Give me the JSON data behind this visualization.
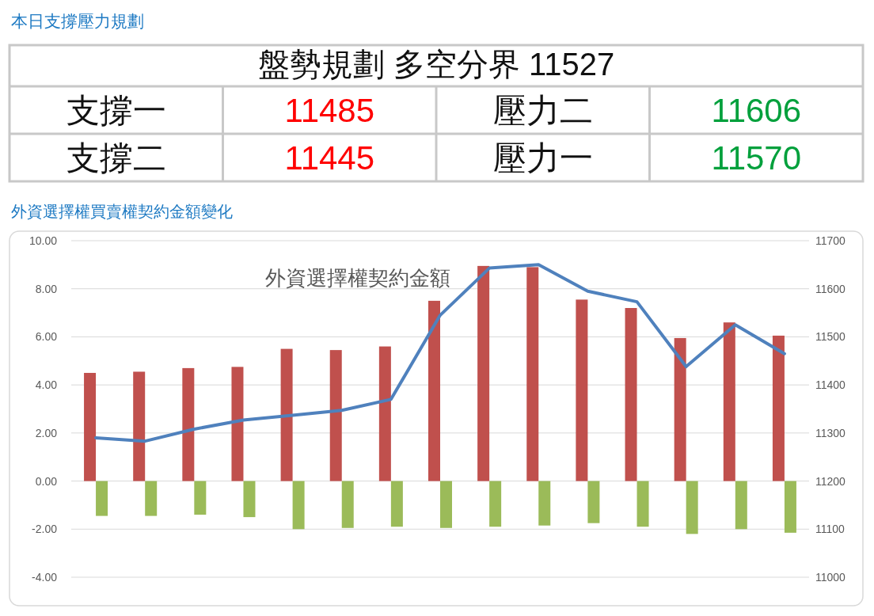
{
  "chart_data": [
    {
      "type": "other",
      "title": "本日支撐壓力規劃",
      "annotations": [
        "盤勢規劃 多空分界 11527",
        "支撐一",
        "11485",
        "壓力二",
        "11606",
        "支撐二",
        "11445",
        "壓力一",
        "11570"
      ]
    },
    {
      "type": "bar",
      "title": "外資選擇權契約金額",
      "annotations": [
        "外資選擇權買賣權契約金額變化"
      ],
      "categories": [
        null,
        null,
        null,
        null,
        null,
        null,
        null,
        null,
        null,
        null,
        null,
        null,
        null,
        null,
        null
      ],
      "series": [
        {
          "color": "#c0504d",
          "values": [
            4.5,
            4.55,
            4.7,
            4.75,
            5.5,
            5.45,
            5.6,
            7.5,
            8.95,
            8.9,
            7.55,
            7.2,
            5.95,
            6.6,
            6.05
          ]
        },
        {
          "color": "#9bbb59",
          "values": [
            -1.45,
            -1.45,
            -1.4,
            -1.5,
            -2.0,
            -1.95,
            -1.9,
            -1.95,
            -1.9,
            -1.85,
            -1.75,
            -1.9,
            -2.2,
            -2.0,
            -2.15
          ]
        },
        {
          "type": "line",
          "axis": "y2",
          "color": "#4f81bd",
          "values": [
            11290,
            11283,
            11308,
            11327,
            11337,
            11347,
            11370,
            11545,
            11643,
            11650,
            11595,
            11573,
            11438,
            11525,
            11465
          ]
        }
      ],
      "ylim": [
        -4,
        10
      ],
      "yticks": [
        {
          "value": -4,
          "label": "-4.00"
        },
        {
          "value": -2,
          "label": "-2.00"
        },
        {
          "value": 0,
          "label": "0.00"
        },
        {
          "value": 2,
          "label": "2.00"
        },
        {
          "value": 4,
          "label": "4.00"
        },
        {
          "value": 6,
          "label": "6.00"
        },
        {
          "value": 8,
          "label": "8.00"
        },
        {
          "value": 10,
          "label": "10.00"
        }
      ],
      "y2lim": [
        11000,
        11700
      ],
      "y2ticks": [
        11000,
        11100,
        11200,
        11300,
        11400,
        11500,
        11600,
        11700
      ],
      "grid": "y"
    }
  ]
}
